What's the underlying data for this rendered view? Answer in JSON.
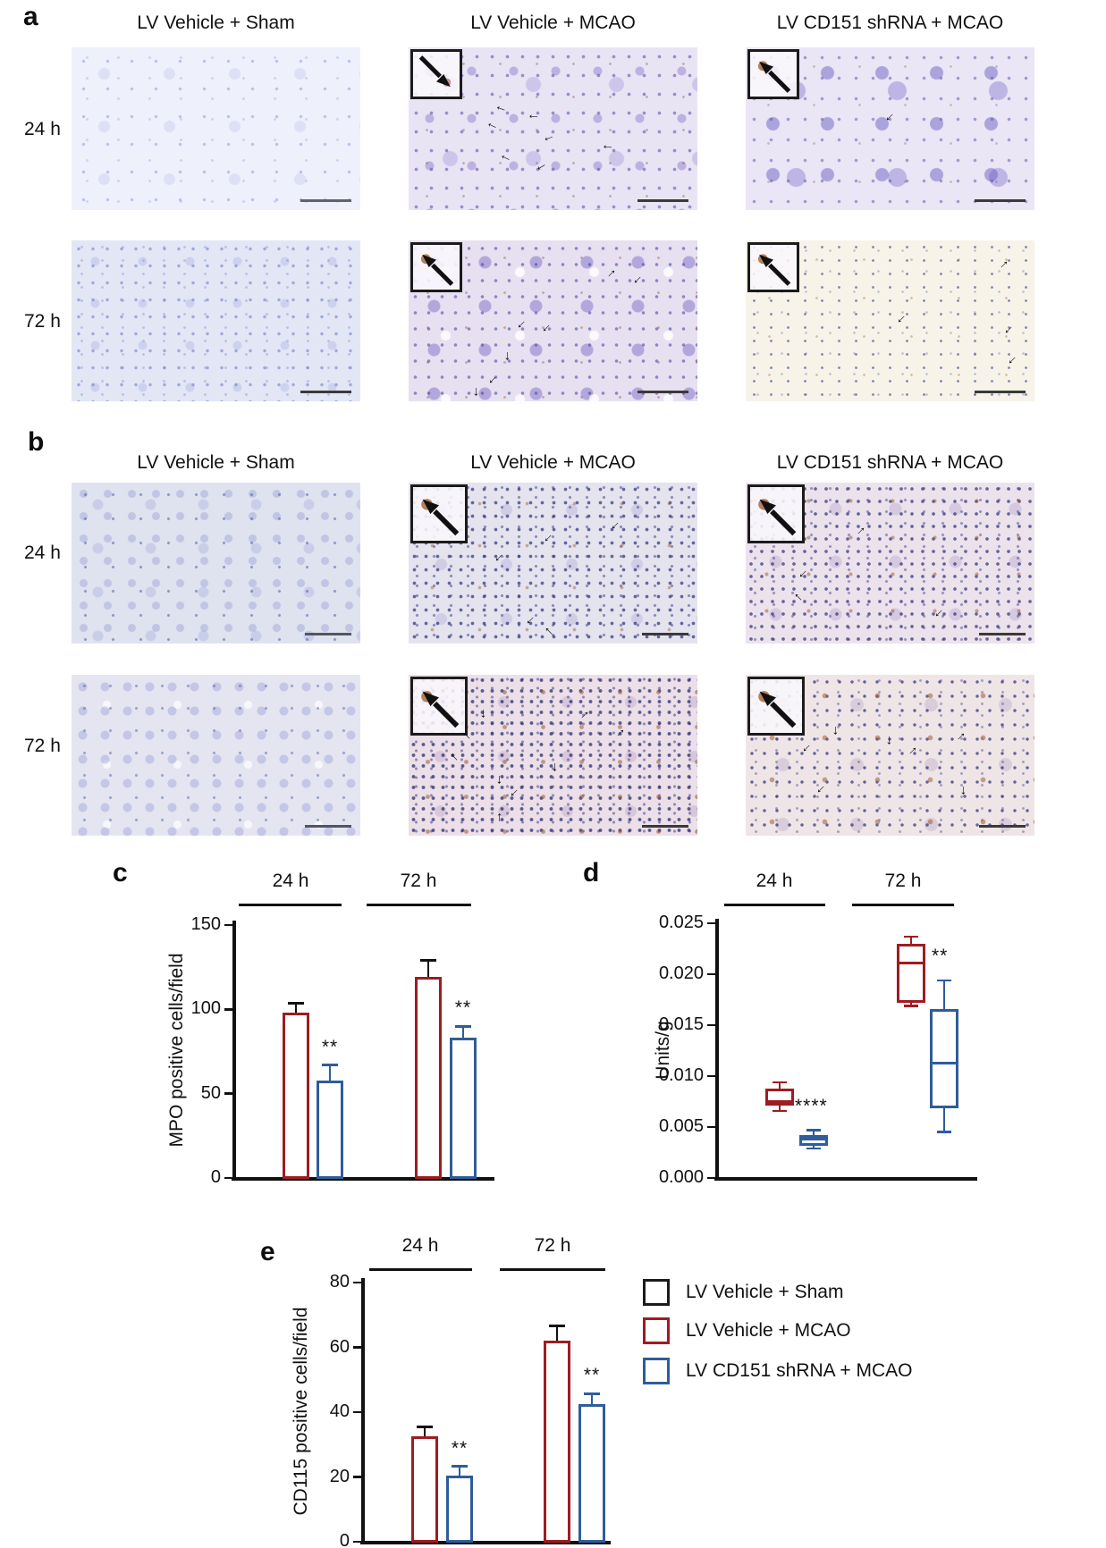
{
  "figure": {
    "panel_a": {
      "label": "a",
      "column_titles": [
        "LV Vehicle + Sham",
        "LV Vehicle + MCAO",
        "LV CD151 shRNA + MCAO"
      ],
      "row_labels": [
        "24 h",
        "72 h"
      ]
    },
    "panel_b": {
      "label": "b",
      "column_titles": [
        "LV Vehicle + Sham",
        "LV Vehicle + MCAO",
        "LV CD151 shRNA + MCAO"
      ],
      "row_labels": [
        "24 h",
        "72 h"
      ]
    }
  },
  "legend": {
    "items": [
      {
        "label": "LV Vehicle + Sham",
        "color": "#1b1b1b"
      },
      {
        "label": "LV Vehicle + MCAO",
        "color": "#9e1c21"
      },
      {
        "label": "LV CD151 shRNA + MCAO",
        "color": "#2e5d99"
      }
    ]
  },
  "chart_data": [
    {
      "id": "c",
      "type": "bar",
      "panel_label": "c",
      "title": "",
      "xlabel": "",
      "ylabel": "MPO positive cells/field",
      "ylim": [
        0,
        150
      ],
      "yticks": [
        "0",
        "50",
        "100",
        "150"
      ],
      "ytick_values": [
        0,
        50,
        100,
        150
      ],
      "groups": [
        "24 h",
        "72 h"
      ],
      "series": [
        {
          "name": "LV Vehicle + MCAO",
          "color": "#9e1c21",
          "error_color": "#111111",
          "values": [
            98,
            119
          ],
          "errors": [
            6,
            10
          ],
          "sig": [
            "",
            ""
          ]
        },
        {
          "name": "LV CD151 shRNA + MCAO",
          "color": "#2e5d99",
          "error_color": "#2e5d99",
          "values": [
            58,
            83
          ],
          "errors": [
            9,
            7
          ],
          "sig": [
            "**",
            "**"
          ]
        }
      ]
    },
    {
      "id": "d",
      "type": "box",
      "panel_label": "d",
      "title": "",
      "xlabel": "",
      "ylabel": "Units/g",
      "ylim": [
        0,
        0.025
      ],
      "yticks": [
        "0.000",
        "0.005",
        "0.010",
        "0.015",
        "0.020",
        "0.025"
      ],
      "ytick_values": [
        0,
        0.005,
        0.01,
        0.015,
        0.02,
        0.025
      ],
      "groups": [
        "24 h",
        "72 h"
      ],
      "group_sig": [
        "****",
        "**"
      ],
      "series": [
        {
          "name": "LV Vehicle + MCAO",
          "color": "#9e1c21",
          "boxes": [
            {
              "low": 0.0066,
              "q1": 0.0071,
              "median": 0.0075,
              "q3": 0.0088,
              "high": 0.0094
            },
            {
              "low": 0.0169,
              "q1": 0.0172,
              "median": 0.0211,
              "q3": 0.023,
              "high": 0.0237
            }
          ]
        },
        {
          "name": "LV CD151 shRNA + MCAO",
          "color": "#2e5d99",
          "boxes": [
            {
              "low": 0.0029,
              "q1": 0.0032,
              "median": 0.0038,
              "q3": 0.0042,
              "high": 0.0047
            },
            {
              "low": 0.0045,
              "q1": 0.0068,
              "median": 0.0113,
              "q3": 0.0166,
              "high": 0.0194
            }
          ]
        }
      ]
    },
    {
      "id": "e",
      "type": "bar",
      "panel_label": "e",
      "title": "",
      "xlabel": "",
      "ylabel": "CD115 positive cells/field",
      "ylim": [
        0,
        80
      ],
      "yticks": [
        "0",
        "20",
        "40",
        "60",
        "80"
      ],
      "ytick_values": [
        0,
        20,
        40,
        60,
        80
      ],
      "groups": [
        "24 h",
        "72 h"
      ],
      "series": [
        {
          "name": "LV Vehicle + MCAO",
          "color": "#9e1c21",
          "error_color": "#111111",
          "values": [
            32.5,
            62
          ],
          "errors": [
            3,
            4.7
          ],
          "sig": [
            "",
            ""
          ]
        },
        {
          "name": "LV CD151 shRNA + MCAO",
          "color": "#2e5d99",
          "error_color": "#2e5d99",
          "values": [
            20.5,
            42.5
          ],
          "errors": [
            2.8,
            3.3
          ],
          "sig": [
            "**",
            "**"
          ]
        }
      ]
    }
  ],
  "icons": {
    "arrow": "→",
    "inset_arrow": "diagonal-arrow"
  },
  "colors": {
    "red": "#9e1c21",
    "blue": "#2e5d99",
    "axis": "#111111"
  }
}
